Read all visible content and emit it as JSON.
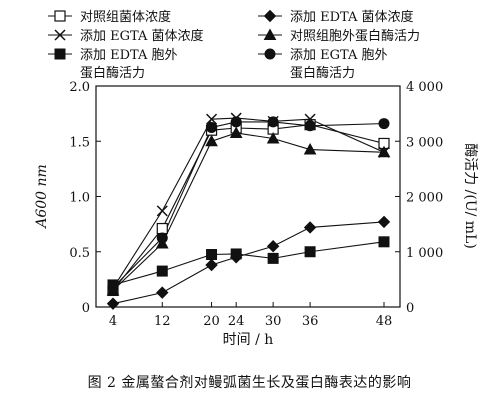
{
  "caption": "图 2   金属螯合剂对鳗弧菌生长及蛋白酶表达的影响",
  "chart_data": {
    "type": "line",
    "xlabel": "时间 / h",
    "ylabel_left": "A600 nm",
    "ylabel_right": "酶活力 /(U/ mL)",
    "categories": [
      "4",
      "12",
      "20",
      "24",
      "30",
      "36",
      "48"
    ],
    "ylim_left": [
      0,
      2.0
    ],
    "yticks_left": [
      "0",
      "0.5",
      "1.0",
      "1.5",
      "2.0"
    ],
    "ylim_right": [
      0,
      4000
    ],
    "yticks_right": [
      "0",
      "1 000",
      "2 000",
      "3 000",
      "4 000"
    ],
    "grid": false,
    "legend_position": "top",
    "series": [
      {
        "name": "对照组菌体浓度",
        "axis": "left",
        "marker": "open-square",
        "values": [
          0.15,
          0.71,
          1.6,
          1.62,
          1.61,
          1.65,
          1.48
        ]
      },
      {
        "name": "添加 EDTA 菌体浓度",
        "axis": "left",
        "marker": "filled-diamond",
        "values": [
          0.03,
          0.13,
          0.38,
          0.45,
          0.55,
          0.72,
          0.77
        ]
      },
      {
        "name": "添加 EGTA 菌体浓度",
        "axis": "left",
        "marker": "cross",
        "values": [
          0.17,
          0.87,
          1.7,
          1.71,
          1.68,
          1.7,
          1.4
        ]
      },
      {
        "name": "对照组胞外蛋白酶活力",
        "axis": "right",
        "marker": "filled-triangle",
        "values": [
          300,
          1150,
          3000,
          3150,
          3050,
          2850,
          2800
        ]
      },
      {
        "name": "添加 EDTA 胞外蛋白酶活力",
        "axis": "right",
        "marker": "filled-square",
        "values": [
          400,
          650,
          950,
          960,
          880,
          1000,
          1180
        ]
      },
      {
        "name": "添加 EGTA 胞外蛋白酶活力",
        "axis": "right",
        "marker": "filled-circle",
        "values": [
          350,
          1250,
          3250,
          3350,
          3350,
          3280,
          3320
        ]
      }
    ]
  }
}
